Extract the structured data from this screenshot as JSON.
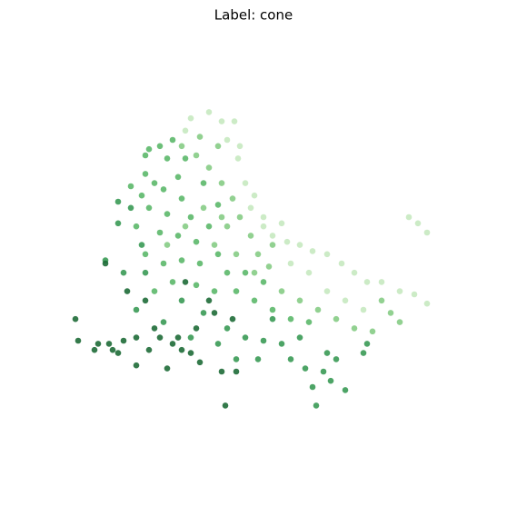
{
  "chart_data": {
    "type": "scatter",
    "title": "Label: cone",
    "xlim": [
      0,
      100
    ],
    "ylim": [
      0,
      100
    ],
    "series": [
      {
        "color": "#c7e9c0",
        "x": [
          37.5,
          41,
          44.5,
          42.5,
          45.5,
          47.5,
          49,
          52.5,
          55,
          59,
          62.5,
          66,
          70,
          74,
          77.5,
          81,
          85,
          90,
          94,
          97.5,
          92.5,
          97.5,
          95,
          65,
          70,
          75,
          60,
          50,
          46,
          32.5,
          31,
          52.5,
          57.5,
          80
        ],
        "values": [
          99,
          96,
          96,
          90,
          84,
          76,
          68,
          62,
          59,
          57,
          56,
          54,
          53,
          50,
          47,
          44,
          44,
          41,
          40,
          37,
          65,
          60,
          63,
          47,
          41,
          38,
          50,
          72,
          88,
          97,
          93,
          65,
          63,
          35
        ]
      },
      {
        "color": "#86cc85",
        "x": [
          30,
          34,
          37.5,
          41,
          44,
          46,
          49,
          51,
          54,
          42.5,
          39,
          45,
          50,
          35,
          40,
          57.5,
          62.5,
          67.5,
          72.5,
          77.5,
          82.5,
          87.5,
          90,
          85,
          55,
          36,
          41,
          31,
          26
        ],
        "values": [
          88,
          85,
          81,
          76,
          71,
          65,
          59,
          53,
          49,
          62,
          56,
          53,
          47,
          91,
          88,
          41,
          38,
          35,
          32,
          29,
          28,
          34,
          31,
          38,
          56,
          68,
          65,
          62,
          56
        ]
      },
      {
        "color": "#5cb86a",
        "x": [
          21,
          24,
          26,
          20,
          22.5,
          19,
          25,
          29,
          21,
          26,
          30,
          32.5,
          24,
          29,
          34,
          37.5,
          20,
          25,
          30,
          35,
          40,
          42.5,
          27.5,
          34,
          39,
          45,
          50,
          22.5,
          17.5,
          31,
          27.5,
          20,
          36,
          40,
          55,
          60,
          65,
          52.5,
          47.5,
          16
        ],
        "values": [
          87,
          88,
          84,
          79,
          76,
          72,
          74,
          78,
          68,
          66,
          71,
          65,
          60,
          59,
          57,
          62,
          53,
          50,
          51,
          50,
          53,
          47,
          44,
          43,
          41,
          41,
          38,
          41,
          62,
          84,
          90,
          85,
          76,
          69,
          35,
          32,
          31,
          44,
          47,
          75
        ]
      },
      {
        "color": "#3a9a55",
        "x": [
          12.5,
          12.5,
          9,
          14,
          17.5,
          25,
          32.5,
          40,
          47.5,
          52.5,
          57.5,
          60,
          64,
          66,
          67,
          69,
          71,
          75,
          72.5,
          80,
          81,
          55,
          42.5,
          20,
          30,
          36,
          45,
          51,
          62.5,
          70,
          19,
          16
        ],
        "values": [
          70,
          63,
          51,
          47,
          35,
          31,
          26,
          24,
          26,
          25,
          24,
          19,
          16,
          10,
          4,
          15,
          12,
          9,
          19,
          21,
          24,
          32,
          29,
          47,
          38,
          34,
          19,
          19,
          26,
          21,
          56,
          68
        ]
      },
      {
        "color": "#1e6b37",
        "x": [
          0.75,
          1.5,
          6,
          10,
          12.5,
          14,
          17.5,
          21,
          22.5,
          26,
          29,
          32.5,
          35,
          39,
          41,
          42,
          45,
          20,
          15,
          24,
          30,
          11,
          7,
          17.5,
          27.5,
          34,
          37.5,
          31,
          44,
          9
        ],
        "values": [
          32,
          25,
          22,
          24,
          21,
          25,
          17,
          22,
          29,
          16,
          26,
          21,
          18,
          34,
          15,
          4,
          15,
          38,
          41,
          26,
          22,
          22,
          24,
          26,
          24,
          29,
          38,
          44,
          32,
          50
        ]
      }
    ]
  }
}
